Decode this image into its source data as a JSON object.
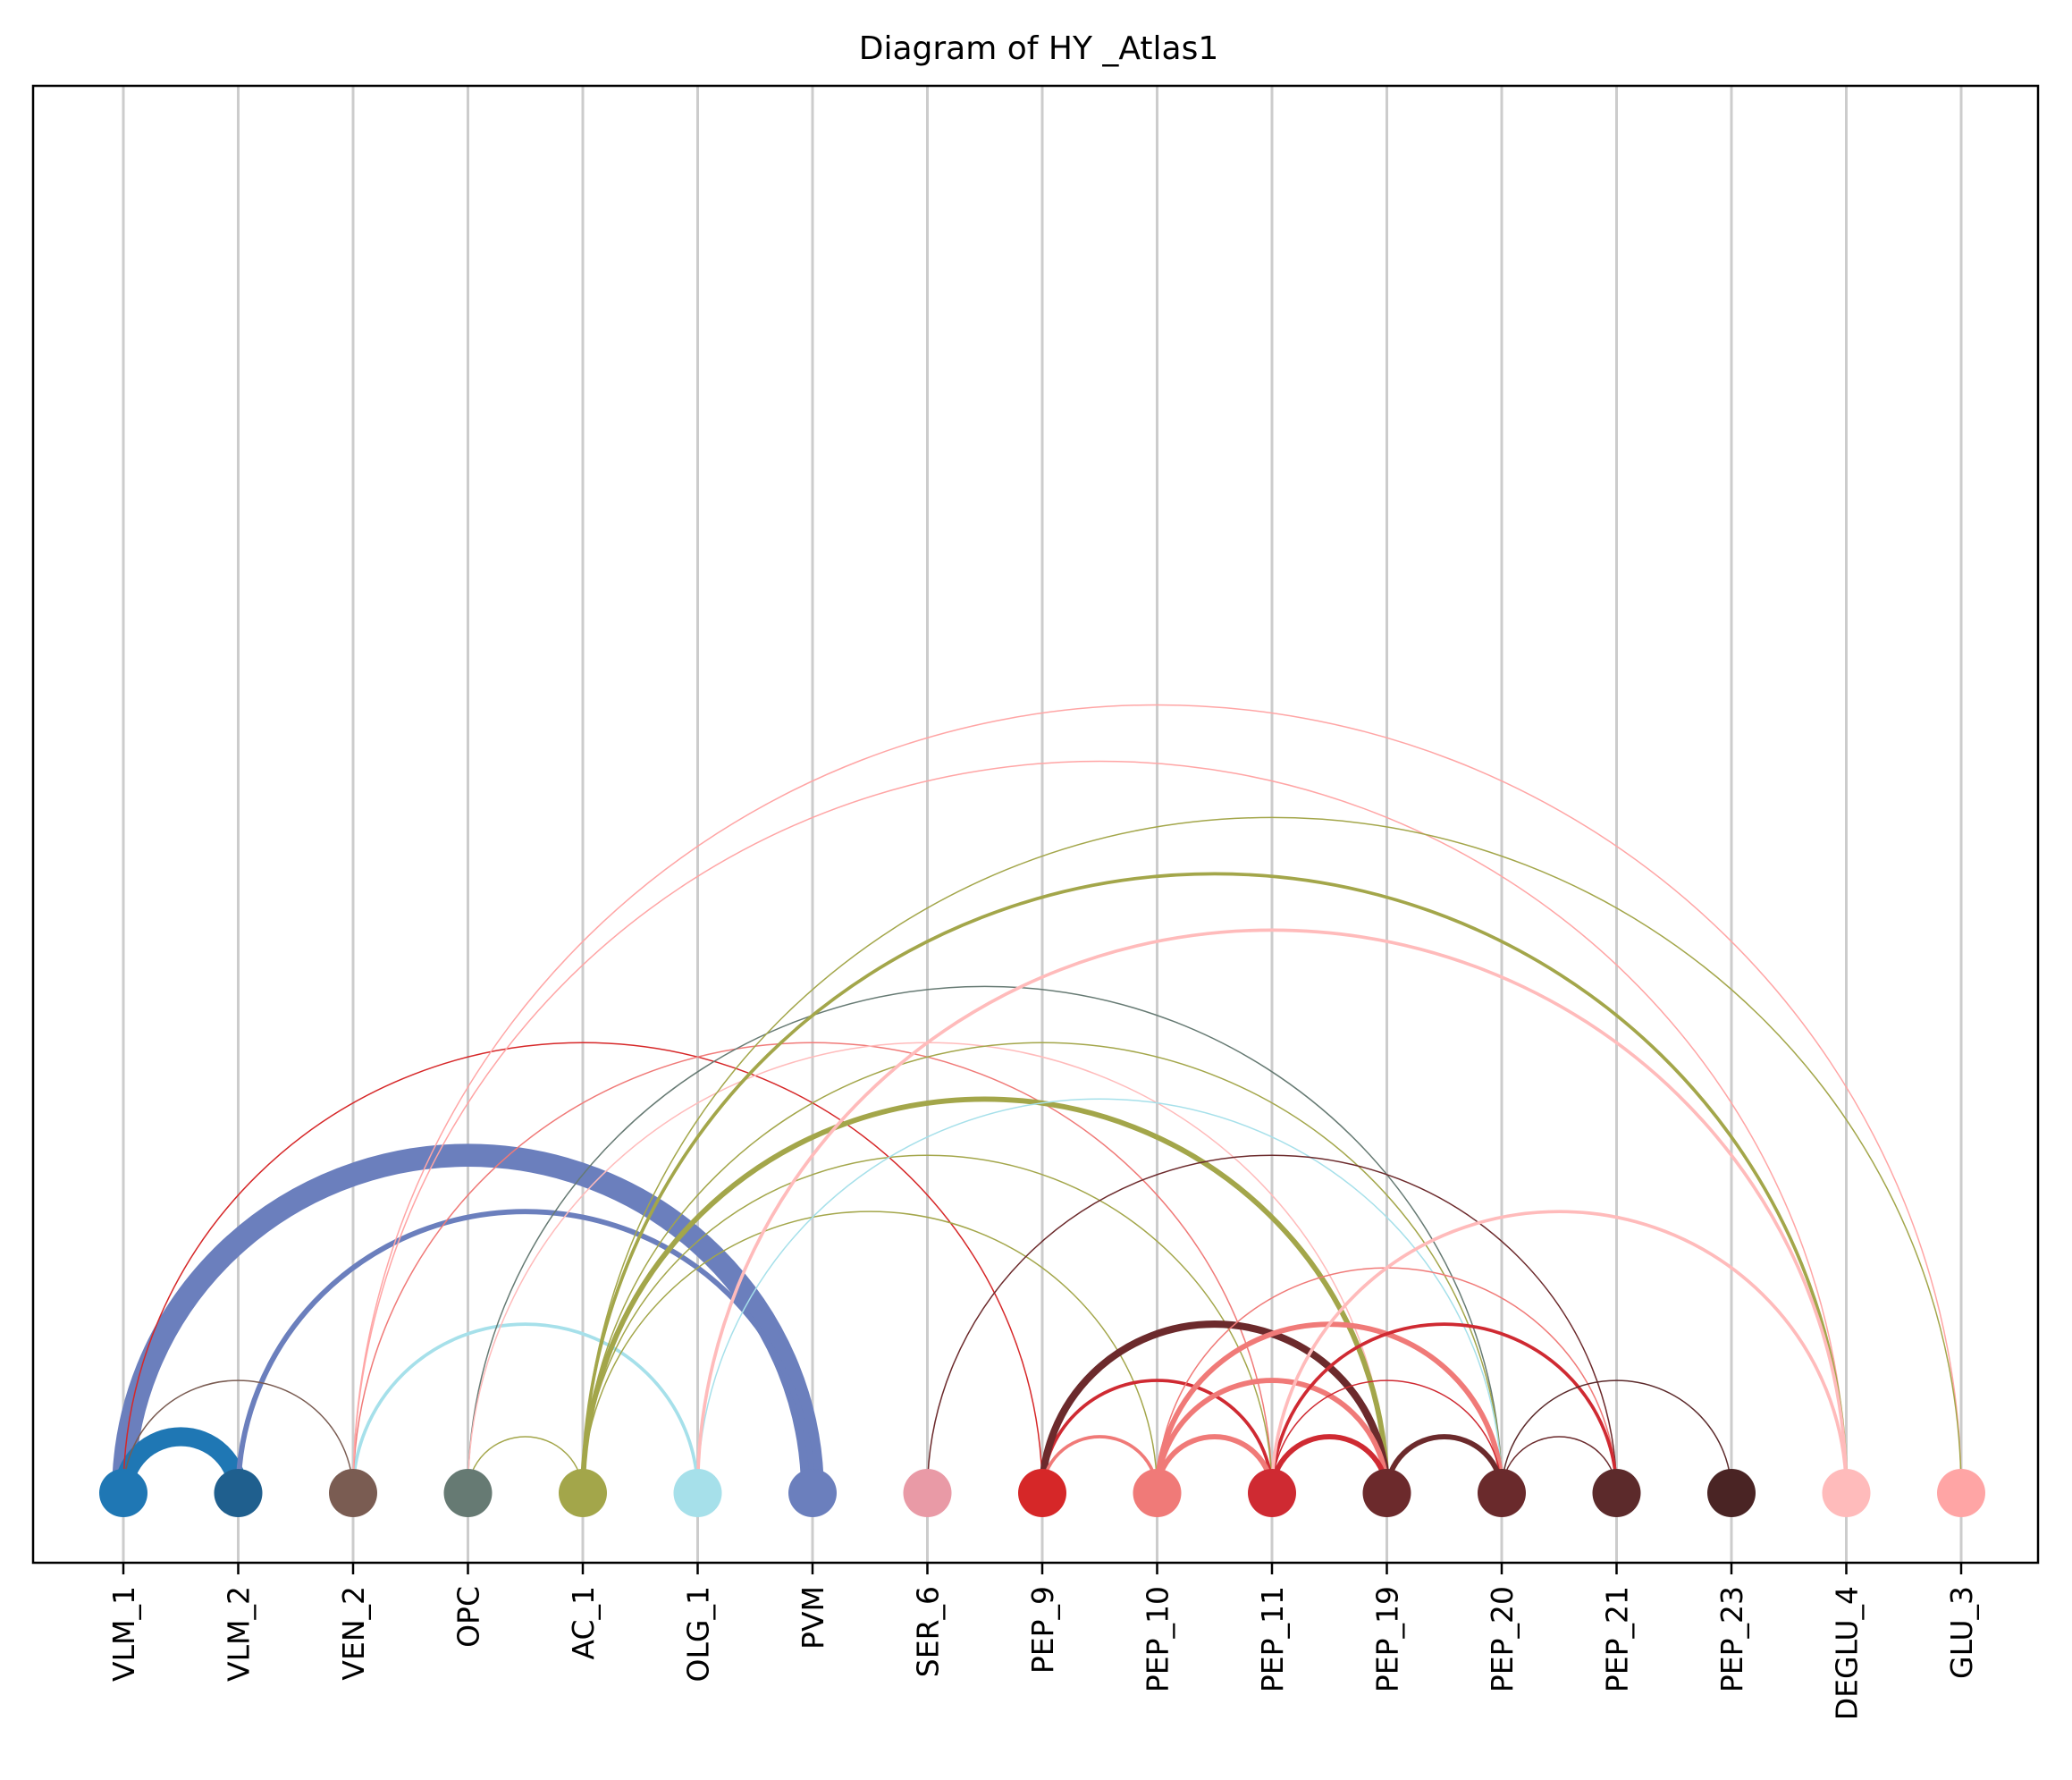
{
  "chart_data": {
    "type": "arc-diagram",
    "title": "Diagram of HY _Atlas1",
    "grid": true,
    "nodes": [
      {
        "label": "VLM_1",
        "color": "#1f77b4"
      },
      {
        "label": "VLM_2",
        "color": "#1f5f8e"
      },
      {
        "label": "VEN_2",
        "color": "#7a5c52"
      },
      {
        "label": "OPC",
        "color": "#667a73"
      },
      {
        "label": "AC_1",
        "color": "#a3a64a"
      },
      {
        "label": "OLG_1",
        "color": "#a6e0ea"
      },
      {
        "label": "PVM",
        "color": "#6b7fbd"
      },
      {
        "label": "SER_6",
        "color": "#e99aa6"
      },
      {
        "label": "PEP_9",
        "color": "#d62728"
      },
      {
        "label": "PEP_10",
        "color": "#f07a78"
      },
      {
        "label": "PEP_11",
        "color": "#cf2a32"
      },
      {
        "label": "PEP_19",
        "color": "#6c2a2c"
      },
      {
        "label": "PEP_20",
        "color": "#6a2a2c"
      },
      {
        "label": "PEP_21",
        "color": "#5c2a2b"
      },
      {
        "label": "PEP_23",
        "color": "#4a2424"
      },
      {
        "label": "DEGLU_4",
        "color": "#ffbbbb"
      },
      {
        "label": "GLU_3",
        "color": "#ffa5a5"
      }
    ],
    "edges": [
      {
        "source": "VLM_1",
        "target": "PVM",
        "weight": 12,
        "color": "#6b7fbd"
      },
      {
        "source": "VLM_1",
        "target": "VLM_2",
        "weight": 10,
        "color": "#1f77b4"
      },
      {
        "source": "VLM_2",
        "target": "PVM",
        "weight": 3,
        "color": "#6b7fbd"
      },
      {
        "source": "VLM_1",
        "target": "VEN_2",
        "weight": 1,
        "color": "#7a5c52"
      },
      {
        "source": "VLM_1",
        "target": "PEP_9",
        "weight": 1,
        "color": "#d62728"
      },
      {
        "source": "VEN_2",
        "target": "OLG_1",
        "weight": 2,
        "color": "#a6e0ea"
      },
      {
        "source": "VEN_2",
        "target": "PEP_11",
        "weight": 1,
        "color": "#f07a78"
      },
      {
        "source": "VEN_2",
        "target": "GLU_3",
        "weight": 1,
        "color": "#ffa5a5"
      },
      {
        "source": "VEN_2",
        "target": "DEGLU_4",
        "weight": 1,
        "color": "#ffa5a5"
      },
      {
        "source": "OPC",
        "target": "AC_1",
        "weight": 1,
        "color": "#a3a64a"
      },
      {
        "source": "OPC",
        "target": "PEP_20",
        "weight": 1,
        "color": "#667a73"
      },
      {
        "source": "OPC",
        "target": "PEP_19",
        "weight": 1,
        "color": "#ffbbbb"
      },
      {
        "source": "AC_1",
        "target": "GLU_3",
        "weight": 1,
        "color": "#a3a64a"
      },
      {
        "source": "AC_1",
        "target": "DEGLU_4",
        "weight": 2,
        "color": "#a3a64a"
      },
      {
        "source": "AC_1",
        "target": "PEP_19",
        "weight": 3,
        "color": "#a3a64a"
      },
      {
        "source": "AC_1",
        "target": "PEP_11",
        "weight": 1,
        "color": "#a3a64a"
      },
      {
        "source": "AC_1",
        "target": "PEP_10",
        "weight": 1,
        "color": "#a3a64a"
      },
      {
        "source": "AC_1",
        "target": "PEP_20",
        "weight": 1,
        "color": "#a3a64a"
      },
      {
        "source": "OLG_1",
        "target": "PEP_20",
        "weight": 1,
        "color": "#a6e0ea"
      },
      {
        "source": "OLG_1",
        "target": "DEGLU_4",
        "weight": 2,
        "color": "#ffbbbb"
      },
      {
        "source": "SER_6",
        "target": "PEP_21",
        "weight": 1,
        "color": "#6c2a2c"
      },
      {
        "source": "PEP_9",
        "target": "PEP_10",
        "weight": 1,
        "color": "#f07a78"
      },
      {
        "source": "PEP_9",
        "target": "PEP_11",
        "weight": 2,
        "color": "#cf2a32"
      },
      {
        "source": "PEP_9",
        "target": "PEP_19",
        "weight": 4,
        "color": "#6c2a2c"
      },
      {
        "source": "PEP_9",
        "target": "PEP_10",
        "weight": 2,
        "color": "#f07a78"
      },
      {
        "source": "PEP_10",
        "target": "PEP_11",
        "weight": 3,
        "color": "#f07a78"
      },
      {
        "source": "PEP_10",
        "target": "PEP_19",
        "weight": 3,
        "color": "#f07a78"
      },
      {
        "source": "PEP_10",
        "target": "PEP_20",
        "weight": 3,
        "color": "#f07a78"
      },
      {
        "source": "PEP_10",
        "target": "PEP_21",
        "weight": 1,
        "color": "#f07a78"
      },
      {
        "source": "PEP_11",
        "target": "PEP_19",
        "weight": 3,
        "color": "#cf2a32"
      },
      {
        "source": "PEP_11",
        "target": "PEP_20",
        "weight": 1,
        "color": "#cf2a32"
      },
      {
        "source": "PEP_11",
        "target": "PEP_21",
        "weight": 2,
        "color": "#cf2a32"
      },
      {
        "source": "PEP_11",
        "target": "DEGLU_4",
        "weight": 2,
        "color": "#ffbbbb"
      },
      {
        "source": "PEP_19",
        "target": "PEP_20",
        "weight": 3,
        "color": "#6c2a2c"
      },
      {
        "source": "PEP_20",
        "target": "PEP_21",
        "weight": 1,
        "color": "#6a2a2c"
      },
      {
        "source": "PEP_20",
        "target": "PEP_23",
        "weight": 1,
        "color": "#5c2a2b"
      }
    ]
  }
}
